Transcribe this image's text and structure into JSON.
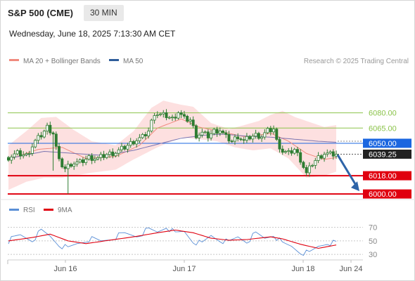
{
  "header": {
    "symbol": "S&P 500 (CME)",
    "interval": "30 MIN",
    "datetime": "Wednesday, June 18, 2025 7:13:30 AM CET"
  },
  "legend": {
    "ma20_label": "MA 20 + Bollinger Bands",
    "ma50_label": "MA 50",
    "credit": "Research © 2025 Trading Central",
    "rsi_label": "RSI",
    "rsi_ma_label": "9MA"
  },
  "colors": {
    "candle": "#2e7d32",
    "bollinger_fill": "#fcd5d5",
    "ma20": "#f08a7e",
    "ma50": "#7b74b0",
    "resistance": "#8bc34a",
    "current_line": "#1a66e0",
    "support": "#e0000f",
    "arrow": "#2e64a8",
    "rsi": "#5a8fd6",
    "rsi_ma": "#e0000f"
  },
  "icons": [
    "arrow-down-right-icon"
  ],
  "chart_data": {
    "type": "candlestick",
    "x_labels": [
      "Jun 16",
      "Jun 17",
      "Jun 18",
      "Jun 24"
    ],
    "ylim": [
      5998,
      6104
    ],
    "levels": [
      {
        "value": 6080.0,
        "label": "6080.00",
        "kind": "resistance"
      },
      {
        "value": 6065.0,
        "label": "6065.00",
        "kind": "resistance"
      },
      {
        "value": 6050.0,
        "label": "6050.00",
        "kind": "pivot"
      },
      {
        "value": 6039.25,
        "label": "6039.25",
        "kind": "last"
      },
      {
        "value": 6018.0,
        "label": "6018.00",
        "kind": "support"
      },
      {
        "value": 6000.0,
        "label": "6000.00",
        "kind": "support"
      }
    ],
    "forecast_arrow": {
      "from": 6039.25,
      "to": 6000.0,
      "direction": "down"
    },
    "price_anchors": [
      [
        0,
        6036
      ],
      [
        3,
        6040
      ],
      [
        6,
        6038
      ],
      [
        9,
        6052
      ],
      [
        11,
        6058
      ],
      [
        13,
        6066
      ],
      [
        15,
        6060
      ],
      [
        17,
        6032
      ],
      [
        19,
        6025
      ],
      [
        21,
        6030
      ],
      [
        24,
        6031
      ],
      [
        27,
        6036
      ],
      [
        30,
        6035
      ],
      [
        33,
        6039
      ],
      [
        36,
        6041
      ],
      [
        39,
        6046
      ],
      [
        42,
        6052
      ],
      [
        45,
        6056
      ],
      [
        47,
        6062
      ],
      [
        49,
        6080
      ],
      [
        51,
        6078
      ],
      [
        53,
        6077
      ],
      [
        55,
        6074
      ],
      [
        57,
        6081
      ],
      [
        59,
        6074
      ],
      [
        61,
        6073
      ],
      [
        63,
        6058
      ],
      [
        65,
        6060
      ],
      [
        67,
        6057
      ],
      [
        69,
        6062
      ],
      [
        71,
        6063
      ],
      [
        73,
        6056
      ],
      [
        75,
        6052
      ],
      [
        77,
        6057
      ],
      [
        79,
        6052
      ],
      [
        81,
        6056
      ],
      [
        83,
        6058
      ],
      [
        85,
        6057
      ],
      [
        87,
        6062
      ],
      [
        89,
        6064
      ],
      [
        90,
        6052
      ],
      [
        92,
        6042
      ],
      [
        94,
        6040
      ],
      [
        96,
        6044
      ],
      [
        98,
        6034
      ],
      [
        100,
        6020
      ],
      [
        102,
        6030
      ],
      [
        104,
        6036
      ],
      [
        106,
        6040
      ],
      [
        108,
        6039
      ],
      [
        110,
        6039.25
      ]
    ],
    "wicks": [
      {
        "index": 15,
        "low": 6023
      },
      {
        "index": 20,
        "low": 6000
      },
      {
        "index": 101,
        "low": 6017
      }
    ],
    "ma20": [
      [
        0,
        6034
      ],
      [
        10,
        6044
      ],
      [
        18,
        6046
      ],
      [
        26,
        6035
      ],
      [
        36,
        6037
      ],
      [
        44,
        6048
      ],
      [
        50,
        6065
      ],
      [
        58,
        6074
      ],
      [
        64,
        6066
      ],
      [
        72,
        6061
      ],
      [
        80,
        6056
      ],
      [
        88,
        6060
      ],
      [
        94,
        6052
      ],
      [
        100,
        6040
      ],
      [
        106,
        6034
      ],
      [
        110,
        6036
      ]
    ],
    "bollinger_upper": [
      [
        0,
        6048
      ],
      [
        6,
        6062
      ],
      [
        11,
        6075
      ],
      [
        16,
        6076
      ],
      [
        22,
        6063
      ],
      [
        28,
        6052
      ],
      [
        36,
        6048
      ],
      [
        42,
        6062
      ],
      [
        48,
        6085
      ],
      [
        52,
        6092
      ],
      [
        58,
        6088
      ],
      [
        62,
        6086
      ],
      [
        68,
        6070
      ],
      [
        74,
        6064
      ],
      [
        78,
        6067
      ],
      [
        84,
        6072
      ],
      [
        88,
        6078
      ],
      [
        92,
        6082
      ],
      [
        96,
        6076
      ],
      [
        100,
        6072
      ],
      [
        106,
        6066
      ],
      [
        110,
        6068
      ]
    ],
    "bollinger_lower": [
      [
        0,
        6004
      ],
      [
        6,
        6012
      ],
      [
        12,
        6016
      ],
      [
        18,
        6016
      ],
      [
        22,
        6018
      ],
      [
        28,
        6021
      ],
      [
        36,
        6024
      ],
      [
        42,
        6034
      ],
      [
        50,
        6046
      ],
      [
        58,
        6056
      ],
      [
        64,
        6054
      ],
      [
        70,
        6052
      ],
      [
        76,
        6046
      ],
      [
        82,
        6043
      ],
      [
        88,
        6045
      ],
      [
        94,
        6035
      ],
      [
        100,
        6016
      ],
      [
        106,
        6018
      ],
      [
        110,
        6022
      ]
    ],
    "ma50": [
      [
        0,
        6035
      ],
      [
        12,
        6042
      ],
      [
        22,
        6040
      ],
      [
        32,
        6038
      ],
      [
        42,
        6043
      ],
      [
        50,
        6049
      ],
      [
        58,
        6055
      ],
      [
        66,
        6058
      ],
      [
        72,
        6059
      ],
      [
        80,
        6057
      ],
      [
        88,
        6056
      ],
      [
        96,
        6054
      ],
      [
        104,
        6052
      ],
      [
        110,
        6051
      ]
    ],
    "rsi": {
      "levels": [
        70,
        50,
        30
      ],
      "ylim": [
        25,
        80
      ],
      "rsi": [
        [
          0,
          50
        ],
        [
          4,
          58
        ],
        [
          8,
          52
        ],
        [
          11,
          64
        ],
        [
          14,
          57
        ],
        [
          17,
          45
        ],
        [
          20,
          38
        ],
        [
          23,
          46
        ],
        [
          27,
          53
        ],
        [
          31,
          49
        ],
        [
          35,
          55
        ],
        [
          39,
          60
        ],
        [
          43,
          58
        ],
        [
          47,
          66
        ],
        [
          50,
          63
        ],
        [
          53,
          72
        ],
        [
          56,
          60
        ],
        [
          59,
          64
        ],
        [
          62,
          50
        ],
        [
          65,
          45
        ],
        [
          68,
          58
        ],
        [
          71,
          52
        ],
        [
          74,
          47
        ],
        [
          77,
          56
        ],
        [
          80,
          50
        ],
        [
          83,
          60
        ],
        [
          86,
          54
        ],
        [
          89,
          60
        ],
        [
          92,
          45
        ],
        [
          95,
          42
        ],
        [
          98,
          34
        ],
        [
          101,
          31
        ],
        [
          104,
          42
        ],
        [
          107,
          48
        ],
        [
          110,
          46
        ]
      ],
      "ma9": [
        [
          0,
          50
        ],
        [
          8,
          55
        ],
        [
          14,
          60
        ],
        [
          20,
          50
        ],
        [
          26,
          46
        ],
        [
          34,
          51
        ],
        [
          42,
          56
        ],
        [
          50,
          62
        ],
        [
          56,
          66
        ],
        [
          62,
          62
        ],
        [
          68,
          54
        ],
        [
          74,
          51
        ],
        [
          80,
          52
        ],
        [
          88,
          56
        ],
        [
          92,
          53
        ],
        [
          98,
          45
        ],
        [
          104,
          39
        ],
        [
          110,
          44
        ]
      ]
    }
  }
}
